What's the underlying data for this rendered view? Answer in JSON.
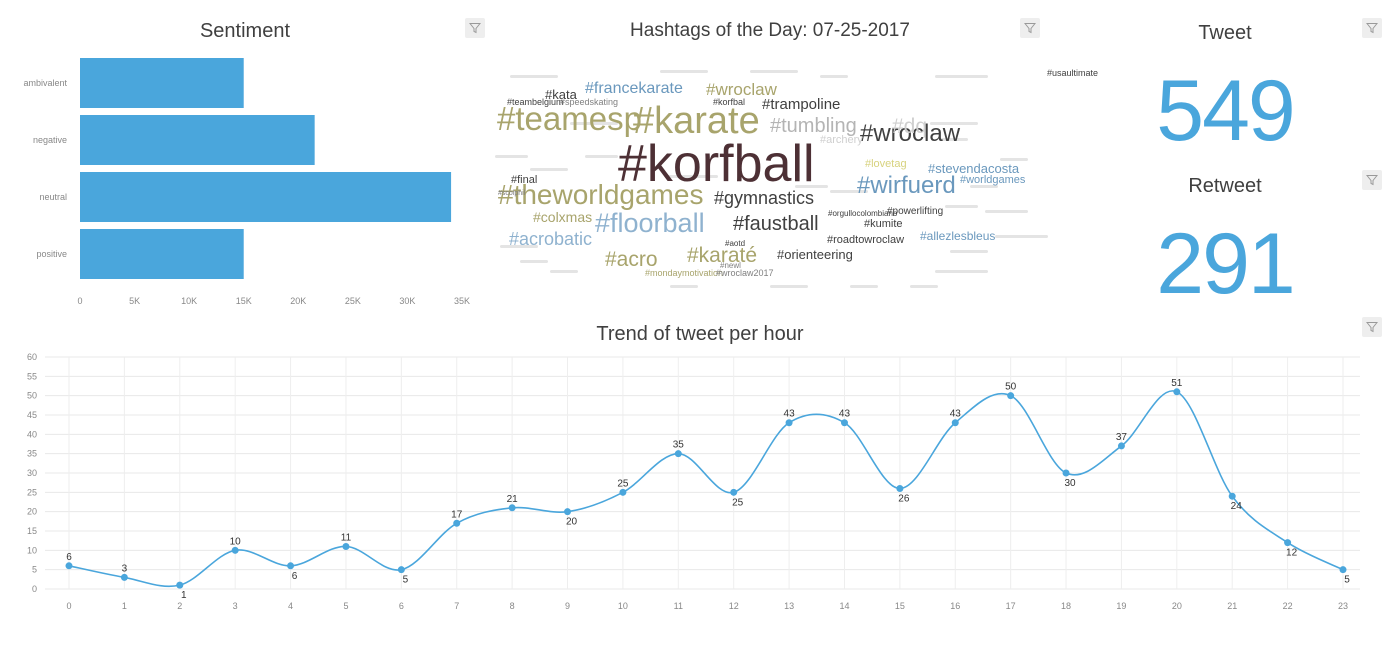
{
  "sentiment": {
    "title": "Sentiment",
    "filter_icon": "filter-icon",
    "chart_data": {
      "type": "bar",
      "orientation": "horizontal",
      "categories": [
        "ambivalent",
        "negative",
        "neutral",
        "positive"
      ],
      "values": [
        15000,
        21500,
        34000,
        15000
      ],
      "xlim": [
        0,
        35000
      ],
      "xticks": [
        "0",
        "5K",
        "10K",
        "15K",
        "20K",
        "25K",
        "30K",
        "35K"
      ],
      "color": "#4aa6dc"
    }
  },
  "hashtags": {
    "title": "Hashtags of the Day: 07-25-2017",
    "filter_icon": "filter-icon",
    "words": [
      {
        "text": "#korfball",
        "color": "#4d3035"
      },
      {
        "text": "#karate",
        "color": "#a8a46c"
      },
      {
        "text": "#teamesp",
        "color": "#a8a46c"
      },
      {
        "text": "#theworldgames",
        "color": "#a8a46c"
      },
      {
        "text": "#floorball",
        "color": "#8fb2cf"
      },
      {
        "text": "#wirfuerd",
        "color": "#6a98bd"
      },
      {
        "text": "#wroclaw",
        "color": "#404040"
      },
      {
        "text": "#tumbling",
        "color": "#b4b4b4"
      },
      {
        "text": "#dq",
        "color": "#cfcfcf"
      },
      {
        "text": "#gymnastics",
        "color": "#404040"
      },
      {
        "text": "#faustball",
        "color": "#404040"
      },
      {
        "text": "#karaté",
        "color": "#a8a46c"
      },
      {
        "text": "#acro",
        "color": "#a8a46c"
      },
      {
        "text": "#acrobatic",
        "color": "#8fb2cf"
      },
      {
        "text": "#francekarate",
        "color": "#6a98bd"
      },
      {
        "text": "#wroclaw",
        "color": "#a8a46c"
      },
      {
        "text": "#trampoline",
        "color": "#404040"
      },
      {
        "text": "#orienteering",
        "color": "#404040"
      },
      {
        "text": "#colxmas",
        "color": "#a8a46c"
      },
      {
        "text": "#stevendacosta",
        "color": "#6a98bd"
      },
      {
        "text": "#worldgames",
        "color": "#6a98bd"
      },
      {
        "text": "#allezlesbleus",
        "color": "#6a98bd"
      },
      {
        "text": "#roadtowroclaw",
        "color": "#404040"
      },
      {
        "text": "#kumite",
        "color": "#404040"
      },
      {
        "text": "#powerlifting",
        "color": "#404040"
      },
      {
        "text": "#kata",
        "color": "#404040"
      },
      {
        "text": "#final",
        "color": "#404040"
      },
      {
        "text": "#archery",
        "color": "#cfcfcf"
      },
      {
        "text": "#lovetag",
        "color": "#d7d27e"
      },
      {
        "text": "#teambelgium",
        "color": "#404040"
      },
      {
        "text": "#speedskating",
        "color": "#808080"
      },
      {
        "text": "#korfbal",
        "color": "#404040"
      },
      {
        "text": "#usaultimate",
        "color": "#404040"
      },
      {
        "text": "#aotd",
        "color": "#404040"
      },
      {
        "text": "#mondaymotivation",
        "color": "#a8a46c"
      },
      {
        "text": "#wroclaw2017",
        "color": "#808080"
      },
      {
        "text": "#orgullocolombiano",
        "color": "#404040"
      },
      {
        "text": "#scolphil",
        "color": "#808080"
      },
      {
        "text": "#newl",
        "color": "#808080"
      }
    ]
  },
  "counts": {
    "tweet_label": "Tweet",
    "tweet_value": "549",
    "retweet_label": "Retweet",
    "retweet_value": "291",
    "filter_icon": "filter-icon",
    "number_color": "#4aa6dc"
  },
  "trend": {
    "title": "Trend of tweet per hour",
    "filter_icon": "filter-icon",
    "chart_data": {
      "type": "line",
      "smooth": true,
      "x": [
        0,
        1,
        2,
        3,
        4,
        5,
        6,
        7,
        8,
        9,
        10,
        11,
        12,
        13,
        14,
        15,
        16,
        17,
        18,
        19,
        20,
        21,
        22,
        23
      ],
      "values": [
        6,
        3,
        1,
        10,
        6,
        11,
        5,
        17,
        21,
        20,
        25,
        35,
        25,
        43,
        43,
        26,
        43,
        50,
        30,
        37,
        51,
        24,
        12,
        5
      ],
      "ylim": [
        0,
        60
      ],
      "yticks": [
        0,
        5,
        10,
        15,
        20,
        25,
        30,
        35,
        40,
        45,
        50,
        55,
        60
      ],
      "grid": true,
      "color": "#4aa6dc"
    }
  }
}
